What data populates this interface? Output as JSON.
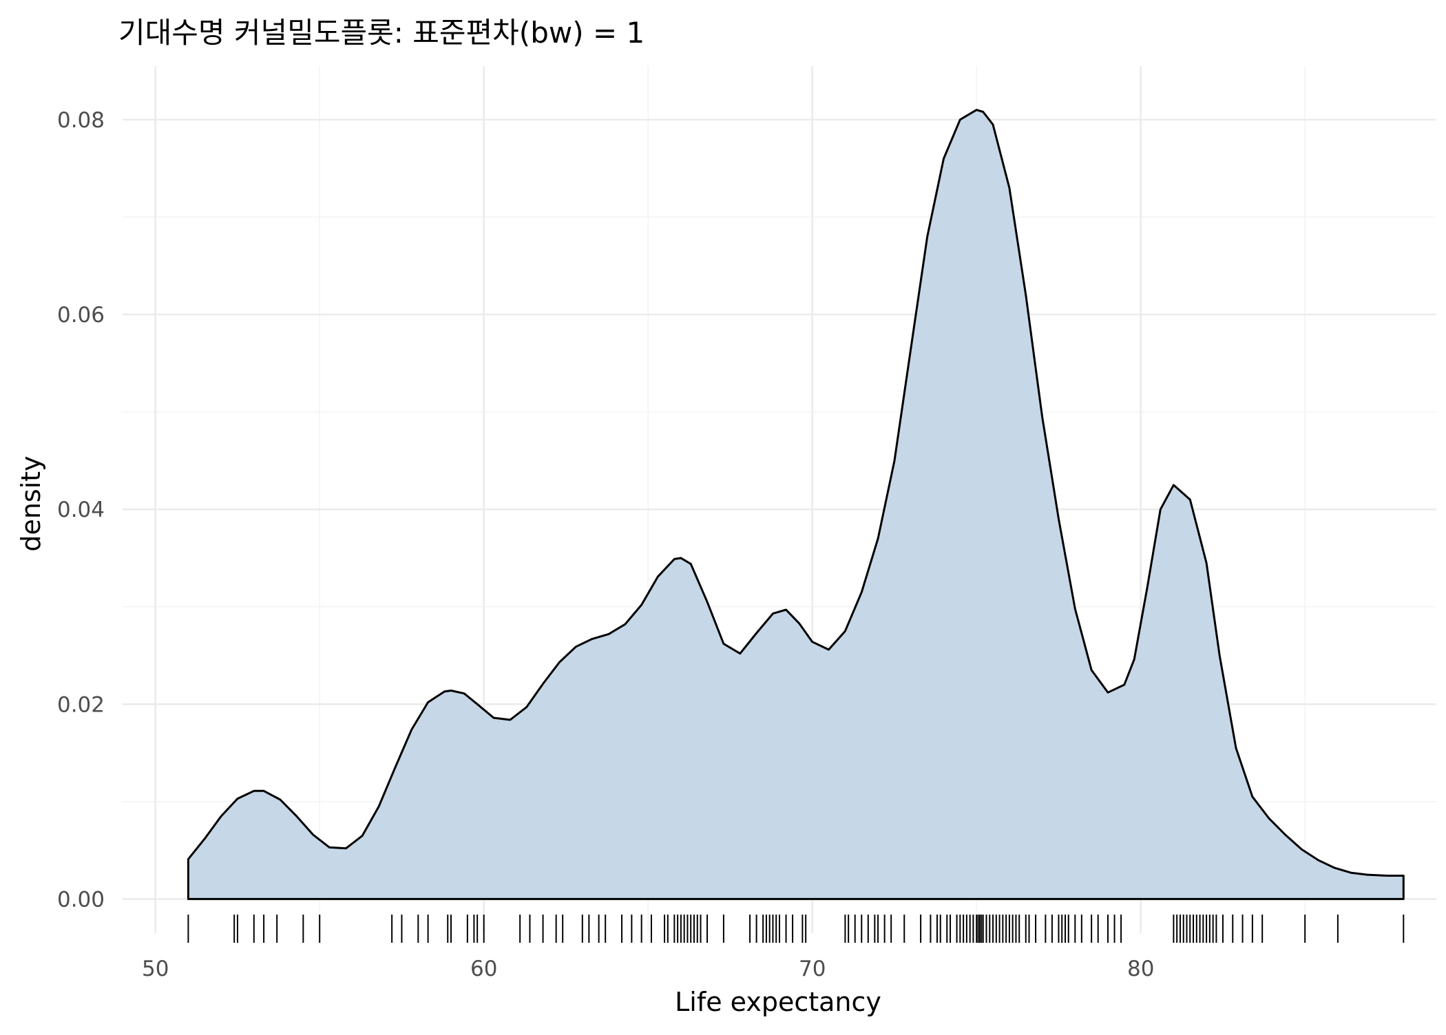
{
  "title": "기대수명 커널밀도플롯: 표준편차(bw) = 1",
  "chart_data": {
    "type": "area",
    "title": "기대수명 커널밀도플롯: 표준편차(bw) = 1",
    "xlabel": "Life expectancy",
    "ylabel": "density",
    "xlim": [
      49,
      89
    ],
    "ylim": [
      -0.0035,
      0.0855
    ],
    "x_ticks": [
      50,
      60,
      70,
      80
    ],
    "x_tick_labels": [
      "50",
      "60",
      "70",
      "80"
    ],
    "y_ticks": [
      0,
      0.02,
      0.04,
      0.06,
      0.08
    ],
    "y_tick_labels": [
      "0.00",
      "0.02",
      "0.04",
      "0.06",
      "0.08"
    ],
    "grid": true,
    "fill_color": "#c6d7e7",
    "line_color": "#000000",
    "series": [
      {
        "x": [
          51.0,
          51.5,
          52.0,
          52.5,
          53.0,
          53.3,
          53.8,
          54.3,
          54.8,
          55.3,
          55.8,
          56.3,
          56.8,
          57.3,
          57.8,
          58.3,
          58.8,
          59.0,
          59.4,
          59.8,
          60.3,
          60.8,
          61.3,
          61.8,
          62.3,
          62.8,
          63.3,
          63.8,
          64.3,
          64.8,
          65.3,
          65.8,
          66.0,
          66.3,
          66.8,
          67.3,
          67.8,
          68.3,
          68.8,
          69.2,
          69.6,
          70.0,
          70.5,
          71.0,
          71.5,
          72.0,
          72.5,
          73.0,
          73.5,
          74.0,
          74.5,
          75.0,
          75.2,
          75.5,
          76.0,
          76.5,
          77.0,
          77.5,
          78.0,
          78.5,
          79.0,
          79.5,
          79.8,
          80.2,
          80.6,
          81.0,
          81.5,
          82.0,
          82.4,
          82.9,
          83.4,
          83.9,
          84.4,
          84.9,
          85.4,
          85.9,
          86.4,
          86.9,
          87.5,
          88.0
        ],
        "y": [
          0.0041,
          0.0062,
          0.0085,
          0.0103,
          0.0111,
          0.0111,
          0.0102,
          0.0085,
          0.0066,
          0.0053,
          0.0052,
          0.0065,
          0.0095,
          0.0135,
          0.0174,
          0.0202,
          0.0213,
          0.0214,
          0.0211,
          0.02,
          0.0186,
          0.0184,
          0.0197,
          0.0221,
          0.0243,
          0.0259,
          0.0267,
          0.0272,
          0.0282,
          0.0302,
          0.0331,
          0.0349,
          0.035,
          0.0344,
          0.0305,
          0.0262,
          0.0252,
          0.0273,
          0.0293,
          0.0297,
          0.0283,
          0.0264,
          0.0256,
          0.0275,
          0.0315,
          0.037,
          0.045,
          0.0565,
          0.068,
          0.076,
          0.08,
          0.081,
          0.0808,
          0.0795,
          0.073,
          0.062,
          0.0495,
          0.039,
          0.0298,
          0.0235,
          0.0212,
          0.022,
          0.0246,
          0.032,
          0.04,
          0.0425,
          0.041,
          0.0345,
          0.025,
          0.0155,
          0.0105,
          0.0083,
          0.0066,
          0.0051,
          0.004,
          0.0032,
          0.0027,
          0.0025,
          0.0024,
          0.0024
        ]
      }
    ],
    "rug": [
      51.0,
      52.4,
      52.5,
      53.0,
      53.3,
      53.7,
      54.5,
      55.0,
      57.2,
      57.5,
      58.0,
      58.3,
      58.9,
      59.0,
      59.5,
      59.7,
      59.8,
      60.0,
      61.1,
      61.4,
      61.8,
      62.2,
      62.4,
      63.0,
      63.2,
      63.5,
      63.7,
      64.2,
      64.5,
      64.8,
      65.1,
      65.5,
      65.6,
      65.8,
      65.9,
      66.0,
      66.1,
      66.2,
      66.3,
      66.4,
      66.5,
      66.6,
      66.8,
      67.3,
      68.1,
      68.3,
      68.5,
      68.6,
      68.7,
      68.8,
      68.9,
      69.0,
      69.2,
      69.4,
      69.7,
      69.8,
      71.0,
      71.1,
      71.3,
      71.5,
      71.7,
      71.9,
      72.0,
      72.2,
      72.4,
      72.8,
      73.3,
      73.6,
      73.8,
      73.9,
      74.1,
      74.2,
      74.4,
      74.5,
      74.6,
      74.7,
      74.8,
      74.9,
      75.0,
      75.05,
      75.1,
      75.15,
      75.2,
      75.3,
      75.4,
      75.5,
      75.6,
      75.7,
      75.8,
      75.9,
      76.0,
      76.1,
      76.2,
      76.3,
      76.5,
      76.6,
      76.8,
      77.1,
      77.3,
      77.5,
      77.6,
      77.7,
      77.8,
      78.0,
      78.2,
      78.5,
      78.7,
      79.0,
      79.2,
      79.4,
      81.0,
      81.1,
      81.2,
      81.3,
      81.4,
      81.5,
      81.6,
      81.7,
      81.8,
      81.9,
      82.0,
      82.1,
      82.2,
      82.3,
      82.5,
      82.8,
      83.1,
      83.4,
      83.7,
      85.0,
      86.0,
      88.0
    ]
  }
}
